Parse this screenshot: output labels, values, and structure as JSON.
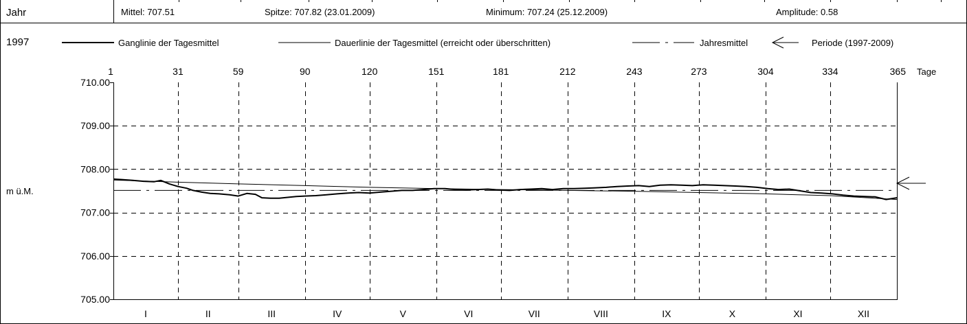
{
  "header": {
    "col_label": "Jahr",
    "mean": "Mittel: 707.51",
    "peak": "Spitze: 707.82 (23.01.2009)",
    "minimum": "Minimum: 707.24 (25.12.2009)",
    "amplitude": "Amplitude: 0.58"
  },
  "year_label": "1997",
  "legend": {
    "ganglinie": "Ganglinie der Tagesmittel",
    "dauerlinie": "Dauerlinie der Tagesmittel (erreicht oder überschritten)",
    "jahresmittel": "Jahresmittel",
    "periode": "Periode (1997-2009)"
  },
  "chart_data": {
    "type": "line",
    "title": "",
    "ylabel": "m ü.M.",
    "x_unit_label": "Tage",
    "xlim": [
      1,
      365
    ],
    "ylim": [
      705.0,
      710.0
    ],
    "x_ticks": [
      1,
      31,
      59,
      90,
      120,
      151,
      181,
      212,
      243,
      273,
      304,
      334,
      365
    ],
    "x_tick_labels": [
      "1",
      "31",
      "59",
      "90",
      "120",
      "151",
      "181",
      "212",
      "243",
      "273",
      "304",
      "334",
      "365"
    ],
    "y_ticks": [
      705,
      706,
      707,
      708,
      709,
      710
    ],
    "y_tick_labels": [
      "705.00",
      "706.00",
      "707.00",
      "708.00",
      "709.00",
      "710.00"
    ],
    "month_labels": [
      "I",
      "II",
      "III",
      "IV",
      "V",
      "VI",
      "VII",
      "VIII",
      "IX",
      "X",
      "XI",
      "XII"
    ],
    "grid": true,
    "grid_style": "dashed",
    "series": [
      {
        "name": "Ganglinie der Tagesmittel",
        "style": "thick",
        "x": [
          1,
          5,
          10,
          15,
          20,
          23,
          27,
          31,
          35,
          38,
          42,
          46,
          50,
          55,
          59,
          63,
          67,
          70,
          74,
          78,
          82,
          86,
          90,
          95,
          100,
          105,
          110,
          115,
          120,
          125,
          130,
          135,
          140,
          145,
          150,
          155,
          160,
          165,
          170,
          175,
          180,
          185,
          190,
          195,
          200,
          205,
          210,
          215,
          220,
          225,
          230,
          235,
          240,
          245,
          250,
          255,
          260,
          265,
          270,
          275,
          280,
          285,
          290,
          295,
          300,
          305,
          310,
          315,
          320,
          325,
          330,
          335,
          340,
          345,
          350,
          355,
          360,
          365
        ],
        "y": [
          707.77,
          707.76,
          707.74,
          707.72,
          707.71,
          707.74,
          707.66,
          707.6,
          707.56,
          707.51,
          707.47,
          707.44,
          707.43,
          707.41,
          707.38,
          707.44,
          707.42,
          707.34,
          707.33,
          707.33,
          707.35,
          707.37,
          707.38,
          707.39,
          707.41,
          707.43,
          707.45,
          707.46,
          707.45,
          707.47,
          707.49,
          707.51,
          707.51,
          707.53,
          707.55,
          707.55,
          707.53,
          707.52,
          707.53,
          707.54,
          707.52,
          707.51,
          707.53,
          707.54,
          707.55,
          707.53,
          707.55,
          707.55,
          707.56,
          707.57,
          707.58,
          707.6,
          707.61,
          707.62,
          707.6,
          707.63,
          707.64,
          707.63,
          707.62,
          707.64,
          707.63,
          707.62,
          707.61,
          707.6,
          707.58,
          707.55,
          707.53,
          707.54,
          707.5,
          707.46,
          707.45,
          707.43,
          707.4,
          707.38,
          707.37,
          707.36,
          707.3,
          707.34
        ]
      },
      {
        "name": "Dauerlinie der Tagesmittel (erreicht oder überschritten)",
        "style": "thin",
        "x": [
          1,
          31,
          59,
          90,
          120,
          151,
          181,
          212,
          243,
          273,
          304,
          334,
          365
        ],
        "y": [
          707.75,
          707.7,
          707.66,
          707.62,
          707.58,
          707.55,
          707.53,
          707.51,
          707.49,
          707.46,
          707.43,
          707.39,
          707.3
        ]
      },
      {
        "name": "Jahresmittel",
        "style": "dashed",
        "x": [
          1,
          365
        ],
        "y": [
          707.51,
          707.51
        ]
      }
    ],
    "period_mean_marker": 707.51
  }
}
